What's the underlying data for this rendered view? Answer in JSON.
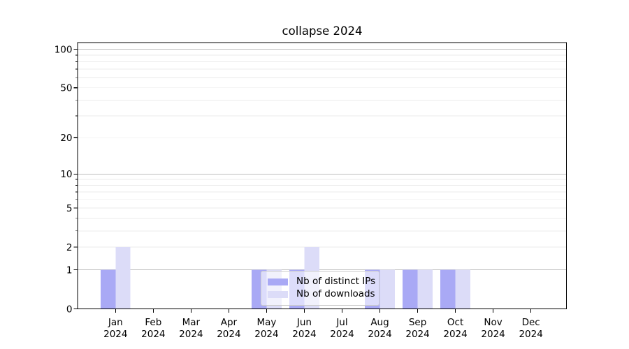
{
  "chart_data": {
    "type": "bar",
    "title": "collapse 2024",
    "categories": [
      "Jan",
      "Feb",
      "Mar",
      "Apr",
      "May",
      "Jun",
      "Jul",
      "Aug",
      "Sep",
      "Oct",
      "Nov",
      "Dec"
    ],
    "year": "2024",
    "series": [
      {
        "name": "Nb of distinct IPs",
        "color": "#a9a9f5",
        "values": [
          1,
          0,
          0,
          0,
          1,
          1,
          0,
          1,
          1,
          1,
          0,
          0
        ]
      },
      {
        "name": "Nb of downloads",
        "color": "#dcdcf8",
        "values": [
          2,
          0,
          0,
          0,
          1,
          2,
          0,
          1,
          1,
          1,
          0,
          0
        ]
      }
    ],
    "xlabel": "",
    "ylabel": "",
    "yscale": "log1p",
    "ylim": [
      0,
      113
    ],
    "y_ticks": [
      100,
      50,
      20,
      10,
      5,
      2,
      1,
      0
    ],
    "y_tick_labels": [
      "100",
      "50",
      "20",
      "10",
      "5",
      "2",
      "1",
      "0"
    ],
    "y_major_gridlines": [
      1,
      10,
      100
    ],
    "y_minor_gridlines": [
      2,
      3,
      4,
      5,
      6,
      7,
      8,
      9,
      20,
      30,
      40,
      50,
      60,
      70,
      80,
      90
    ],
    "grid": true,
    "legend_position": "lower center",
    "colors": {
      "major_grid": "#bdbdbd",
      "minor_grid": "#ebebeb",
      "axis": "#000000",
      "text": "#000000",
      "legend_border": "#cccccc",
      "background": "#ffffff"
    }
  }
}
